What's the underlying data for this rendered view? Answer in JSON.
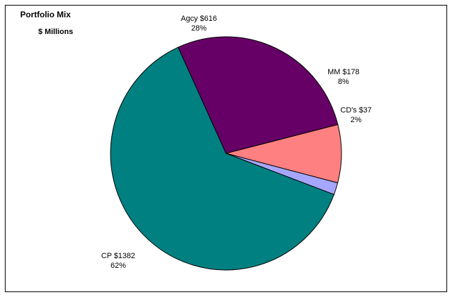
{
  "chart_data": {
    "type": "pie",
    "title": "Portfolio Mix",
    "subtitle": "$ Millions",
    "start_angle_deg": 245.5,
    "direction": "clockwise",
    "slices": [
      {
        "label": "Agcy $616",
        "percent_label": "28%",
        "value": 616,
        "color": "#660066"
      },
      {
        "label": "MM $178",
        "percent_label": "8%",
        "value": 178,
        "color": "#ff8080"
      },
      {
        "label": "CD's $37",
        "percent_label": "2%",
        "value": 37,
        "color": "#a6a6ff"
      },
      {
        "label": "CP $1382",
        "percent_label": "62%",
        "value": 1382,
        "color": "#008080"
      }
    ]
  }
}
